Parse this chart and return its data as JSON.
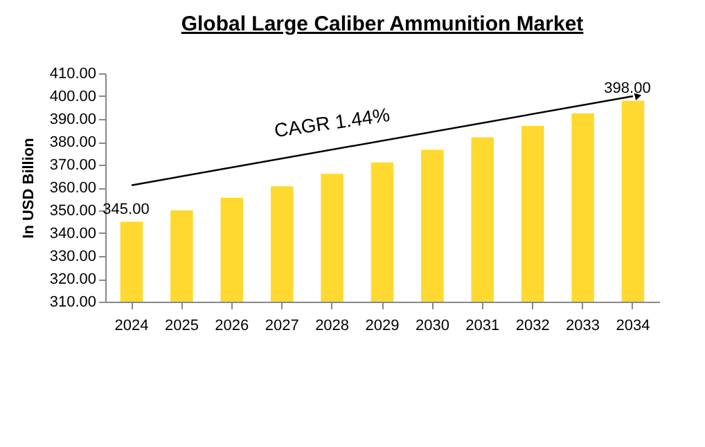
{
  "chart_data": {
    "type": "bar",
    "title": "Global Large Caliber Ammunition  Market",
    "ylabel": "In USD Billion",
    "categories": [
      "2024",
      "2025",
      "2026",
      "2027",
      "2028",
      "2029",
      "2030",
      "2031",
      "2032",
      "2033",
      "2034"
    ],
    "values": [
      345,
      350,
      355.5,
      360.5,
      366,
      371,
      376.5,
      382,
      387,
      392.5,
      398
    ],
    "color": "#ffd92f",
    "value_labels": [
      "345.00",
      null,
      null,
      null,
      null,
      null,
      null,
      null,
      null,
      null,
      "398.00"
    ],
    "ylim": [
      310,
      410
    ],
    "yticks": [
      {
        "value": 310,
        "label": "310.00"
      },
      {
        "value": 320,
        "label": "320.00"
      },
      {
        "value": 330,
        "label": "330.00"
      },
      {
        "value": 340,
        "label": "340.00"
      },
      {
        "value": 350,
        "label": "350.00"
      },
      {
        "value": 360,
        "label": "360.00"
      },
      {
        "value": 370,
        "label": "370.00"
      },
      {
        "value": 380,
        "label": "380.00"
      },
      {
        "value": 390,
        "label": "390.00"
      },
      {
        "value": 400,
        "label": "400.00"
      },
      {
        "value": 410,
        "label": "410.00"
      }
    ],
    "annotations": [
      "CAGR 1.44%"
    ]
  }
}
